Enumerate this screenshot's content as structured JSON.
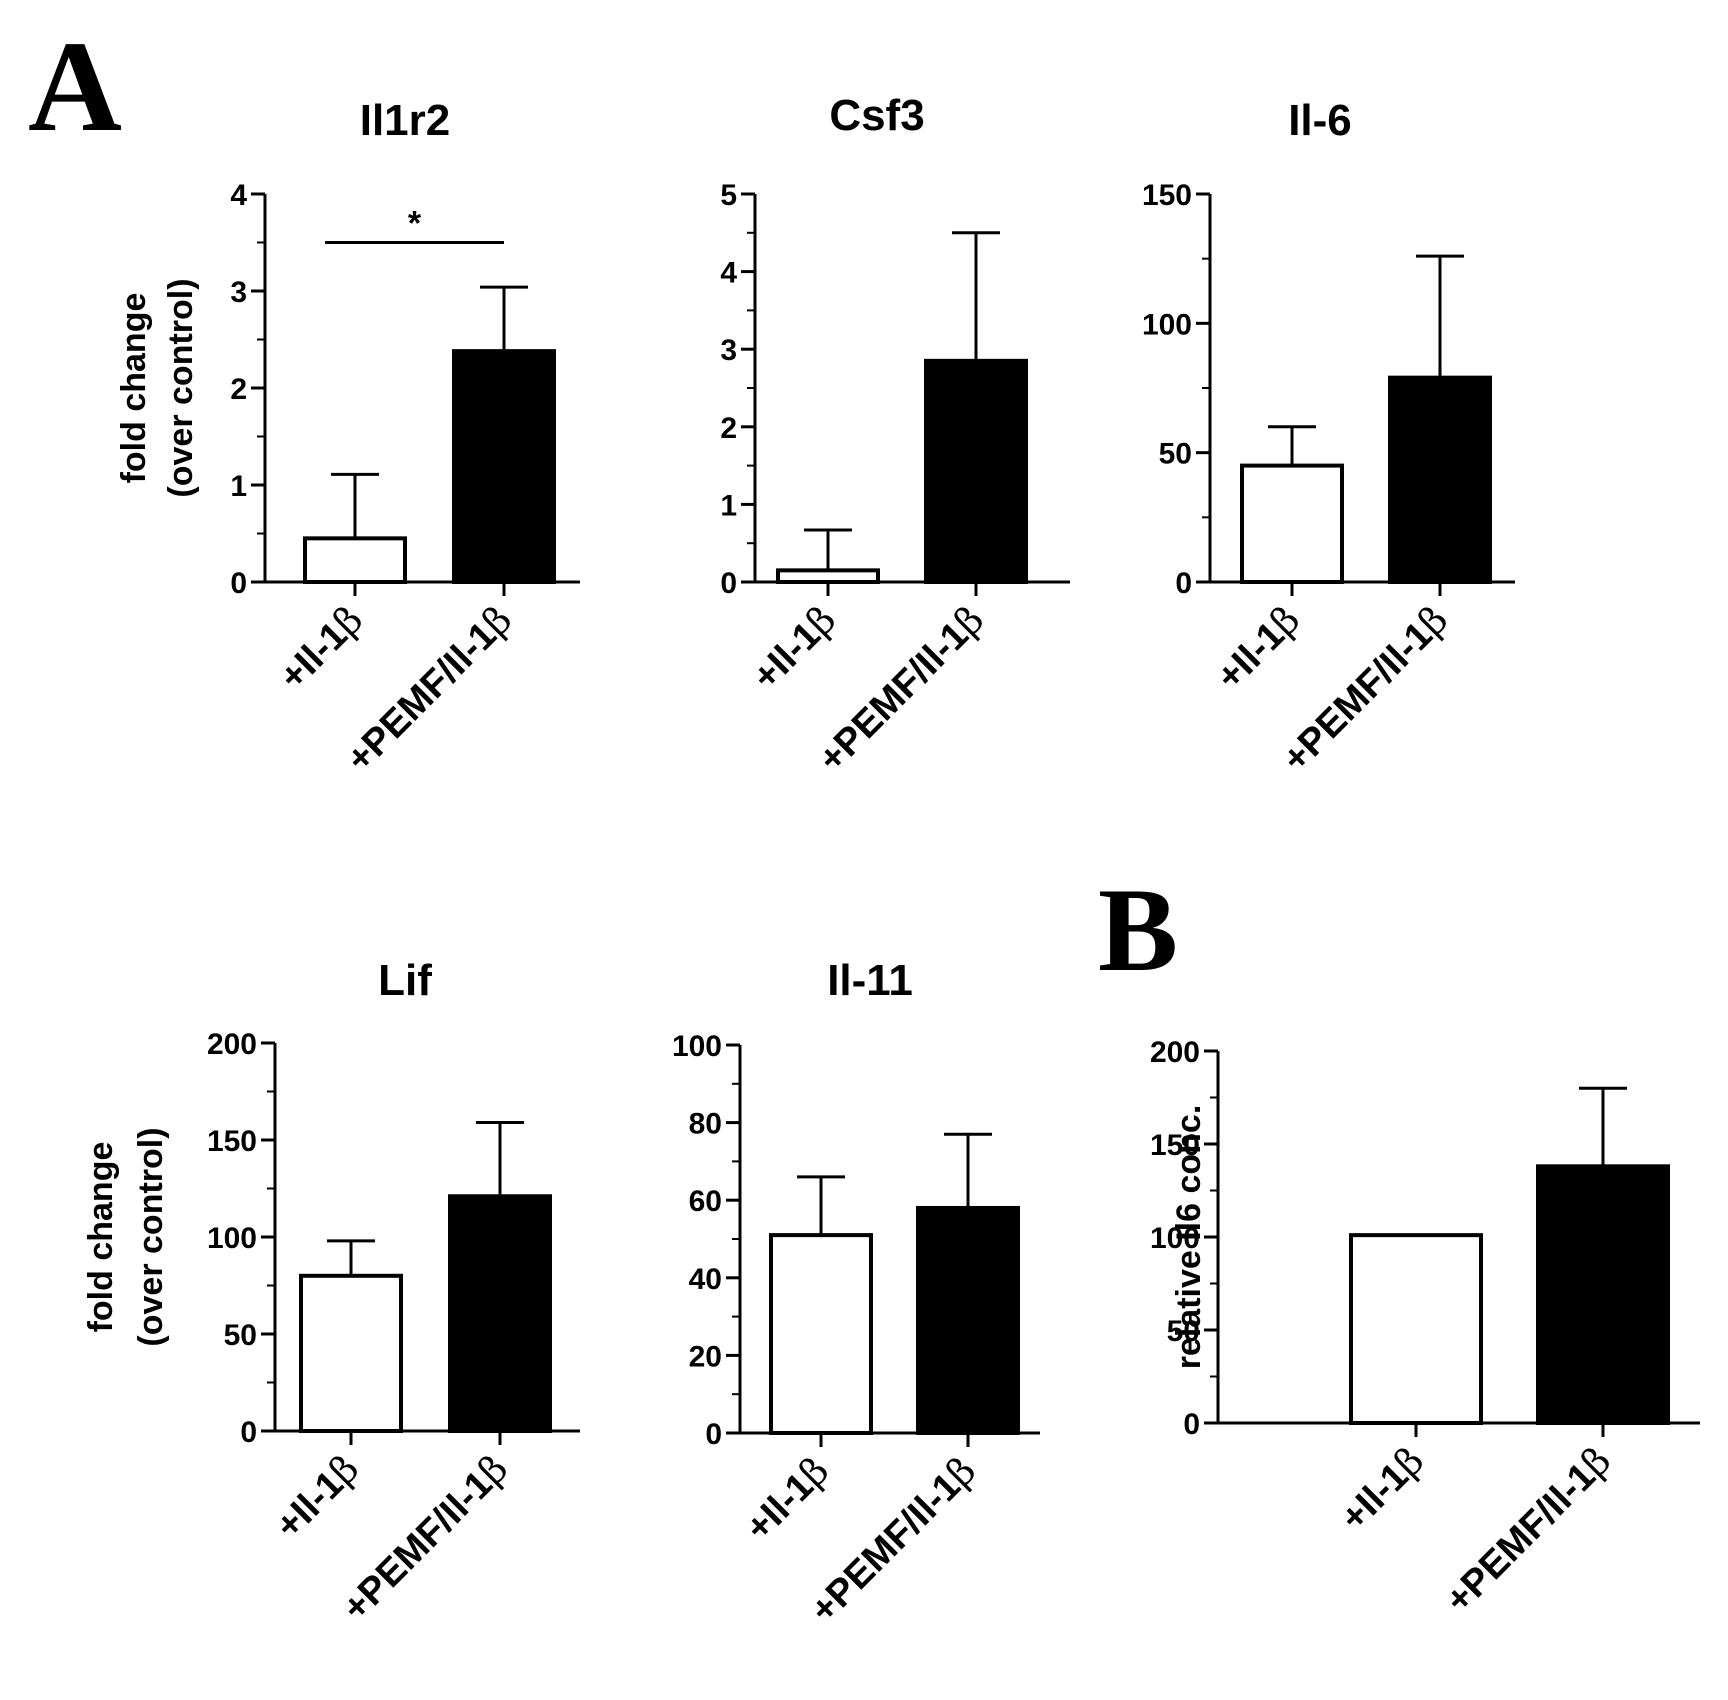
{
  "panel_labels": {
    "a": "A",
    "b": "B"
  },
  "colors": {
    "open_bar": "#ffffff",
    "filled_bar": "#000000",
    "stroke": "#000000"
  },
  "chart_data": [
    {
      "id": "il1r2",
      "type": "bar",
      "panel": "A",
      "title": "Il1r2",
      "ylabel": [
        "fold change",
        "(over control)"
      ],
      "categories": [
        "+Il-1",
        "+PEMF/Il-1"
      ],
      "category_suffix": "β",
      "values": [
        0.45,
        2.38
      ],
      "errors": [
        0.66,
        0.66
      ],
      "ylim": [
        0,
        4
      ],
      "yticks": [
        0,
        1,
        2,
        3,
        4
      ],
      "minor_per_major": 1,
      "significance": {
        "pair": [
          0,
          1
        ],
        "label": "*",
        "y": 3.5
      }
    },
    {
      "id": "csf3",
      "type": "bar",
      "panel": "A",
      "title": "Csf3",
      "ylabel": [],
      "categories": [
        "+Il-1",
        "+PEMF/Il-1"
      ],
      "category_suffix": "β",
      "values": [
        0.15,
        2.85
      ],
      "errors": [
        0.52,
        1.65
      ],
      "ylim": [
        0,
        5
      ],
      "yticks": [
        0,
        1,
        2,
        3,
        4,
        5
      ],
      "minor_per_major": 1
    },
    {
      "id": "il6",
      "type": "bar",
      "panel": "A",
      "title": "Il-6",
      "ylabel": [],
      "categories": [
        "+Il-1",
        "+PEMF/Il-1"
      ],
      "category_suffix": "β",
      "values": [
        45,
        79
      ],
      "errors": [
        15,
        47
      ],
      "ylim": [
        0,
        150
      ],
      "yticks": [
        0,
        50,
        100,
        150
      ],
      "minor_per_major": 1
    },
    {
      "id": "lif",
      "type": "bar",
      "panel": "A",
      "title": "Lif",
      "ylabel": [
        "fold change",
        "(over control)"
      ],
      "categories": [
        "+Il-1",
        "+PEMF/Il-1"
      ],
      "category_suffix": "β",
      "values": [
        80,
        121
      ],
      "errors": [
        18,
        38
      ],
      "ylim": [
        0,
        200
      ],
      "yticks": [
        0,
        50,
        100,
        150,
        200
      ],
      "minor_per_major": 1
    },
    {
      "id": "il11",
      "type": "bar",
      "panel": "A",
      "title": "Il-11",
      "ylabel": [],
      "categories": [
        "+Il-1",
        "+PEMF/Il-1"
      ],
      "category_suffix": "β",
      "values": [
        51,
        58
      ],
      "errors": [
        15,
        19
      ],
      "ylim": [
        0,
        100
      ],
      "yticks": [
        0,
        20,
        40,
        60,
        80,
        100
      ],
      "minor_per_major": 1
    },
    {
      "id": "il6conc",
      "type": "bar",
      "panel": "B",
      "title": "",
      "ylabel": [
        "relative Il6 conc."
      ],
      "categories": [
        "+Il-1",
        "+PEMF/Il-1"
      ],
      "category_suffix": "β",
      "values": [
        101,
        138
      ],
      "errors": [
        0,
        42
      ],
      "ylim": [
        0,
        200
      ],
      "yticks": [
        0,
        50,
        100,
        150,
        200
      ],
      "minor_per_major": 1
    }
  ]
}
